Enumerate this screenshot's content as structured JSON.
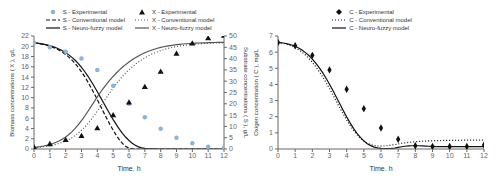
{
  "chart_data": [
    {
      "type": "line",
      "xlabel": "Time, h",
      "ylabel": "Biomass concentrations ( X ), g/L",
      "y2label": "Substrate concentrations ( S ), g/L",
      "xlim": [
        0,
        12
      ],
      "xticks": [
        0,
        1,
        2,
        3,
        4,
        5,
        6,
        7,
        8,
        9,
        10,
        11,
        12
      ],
      "ylim": [
        0,
        22
      ],
      "yticks": [
        0,
        2,
        4,
        6,
        8,
        10,
        12,
        14,
        16,
        18,
        20,
        22
      ],
      "y2lim": [
        0,
        50
      ],
      "y2ticks": [
        0,
        5,
        10,
        15,
        20,
        25,
        30,
        35,
        40,
        45,
        50
      ],
      "grid": false,
      "legend": "top",
      "x": [
        0.0,
        0.2,
        0.4,
        0.6,
        0.8,
        1.0,
        1.2,
        1.4,
        1.6,
        1.8,
        2.0,
        2.2,
        2.4,
        2.6,
        2.8,
        3.0,
        3.2,
        3.4,
        3.6,
        3.8,
        4.0,
        4.2,
        4.4,
        4.6,
        4.8,
        5.0,
        5.2,
        5.4,
        5.6,
        5.8,
        6.0,
        6.2,
        6.4,
        6.6,
        6.8,
        7.0,
        7.2,
        7.4,
        7.6,
        7.8,
        8.0,
        8.2,
        8.4,
        8.6,
        8.8,
        9.0,
        9.2,
        9.4,
        9.6,
        9.8,
        10.0,
        10.2,
        10.4,
        10.6,
        10.8,
        11.0,
        11.2,
        11.4,
        11.6,
        11.8,
        12.0
      ],
      "series": [
        {
          "name": "S - Experimental",
          "type": "scatter",
          "marker": "circle",
          "color": "#8ab4d8",
          "axis": "y2",
          "x": [
            0,
            1,
            2,
            3,
            4,
            5,
            6,
            7,
            8,
            9,
            10,
            11,
            12
          ],
          "values": [
            47,
            45,
            43,
            40,
            35,
            28,
            20,
            14,
            9,
            5,
            2.5,
            1.0,
            0.5
          ]
        },
        {
          "name": "S - Conventional model",
          "type": "line",
          "line_style": "dashed",
          "color": "#111111",
          "axis": "y2",
          "values": [
            47.0,
            46.8,
            46.55,
            46.25,
            45.9,
            45.48,
            44.98,
            44.38,
            43.66,
            42.81,
            41.82,
            40.67,
            39.34,
            37.82,
            36.1,
            34.17,
            32.03,
            29.7,
            27.2,
            24.56,
            21.82,
            19.02,
            16.2,
            13.44,
            10.79,
            8.3,
            6.04,
            4.04,
            2.38,
            1.12,
            0.38,
            0.07,
            0.01,
            0.0,
            0.0,
            0.0,
            0.0,
            0.0,
            0.0,
            0.0,
            0.0,
            0.0,
            0.0,
            0.0,
            0.0,
            0.0,
            0.0,
            0.0,
            0.0,
            0.0,
            0.0,
            0.0,
            0.0,
            0.0,
            0.0,
            0.0,
            0.0,
            0.0,
            0.0,
            0.0,
            0.0
          ]
        },
        {
          "name": "S - Neuro-fuzzy model",
          "type": "line",
          "line_style": "solid",
          "color": "#111111",
          "axis": "y2",
          "values": [
            47.0,
            46.85,
            46.65,
            46.4,
            46.1,
            45.74,
            45.3,
            44.78,
            44.17,
            43.45,
            42.62,
            41.65,
            40.53,
            39.25,
            37.79,
            36.14,
            34.3,
            32.28,
            30.1,
            27.78,
            25.35,
            22.85,
            20.32,
            17.81,
            15.35,
            12.99,
            10.76,
            8.7,
            6.83,
            5.18,
            3.76,
            2.58,
            1.65,
            0.96,
            0.51,
            0.24,
            0.1,
            0.04,
            0.02,
            0.01,
            0.005,
            0.003,
            0.002,
            0.001,
            0.0,
            0.0,
            0.0,
            0.0,
            0.0,
            0.0,
            0.0,
            0.0,
            0.0,
            0.0,
            0.0,
            0.0,
            0.0,
            0.0,
            0.0,
            0.0,
            0.0
          ]
        },
        {
          "name": "X - Experimental",
          "type": "scatter",
          "marker": "triangle",
          "color": "#111111",
          "x": [
            0,
            1,
            2,
            3,
            4,
            5,
            6,
            7,
            8,
            9,
            10,
            11,
            12
          ],
          "values": [
            0.3,
            0.9,
            1.7,
            2.5,
            4.0,
            6.5,
            9.0,
            12.0,
            15.0,
            18.5,
            20.5,
            21.5,
            22.0
          ]
        },
        {
          "name": "X - Conventional model",
          "type": "line",
          "line_style": "dotted",
          "color": "#555555",
          "values": [
            0.3,
            0.34,
            0.39,
            0.46,
            0.54,
            0.65,
            0.78,
            0.93,
            1.1,
            1.32,
            1.57,
            1.87,
            2.22,
            2.63,
            3.1,
            3.65,
            4.26,
            4.95,
            5.7,
            6.52,
            7.38,
            8.28,
            9.2,
            10.12,
            11.02,
            11.88,
            12.7,
            13.47,
            14.18,
            14.84,
            15.44,
            15.99,
            16.5,
            16.96,
            17.38,
            17.76,
            18.1,
            18.41,
            18.68,
            18.93,
            19.15,
            19.35,
            19.52,
            19.68,
            19.82,
            19.94,
            20.05,
            20.14,
            20.23,
            20.3,
            20.36,
            20.42,
            20.47,
            20.51,
            20.55,
            20.58,
            20.61,
            20.63,
            20.65,
            20.67,
            20.69
          ]
        },
        {
          "name": "X - Neuro-fuzzy model",
          "type": "line",
          "line_style": "solid",
          "color": "#555555",
          "values": [
            0.3,
            0.38,
            0.47,
            0.58,
            0.72,
            0.88,
            1.08,
            1.32,
            1.6,
            1.94,
            2.35,
            2.83,
            3.38,
            4.01,
            4.73,
            5.52,
            6.38,
            7.3,
            8.25,
            9.2,
            10.15,
            11.05,
            11.9,
            12.7,
            13.45,
            14.15,
            14.8,
            15.4,
            15.96,
            16.47,
            16.94,
            17.37,
            17.76,
            18.12,
            18.44,
            18.73,
            18.99,
            19.22,
            19.43,
            19.61,
            19.77,
            19.91,
            20.03,
            20.14,
            20.23,
            20.31,
            20.38,
            20.44,
            20.49,
            20.54,
            20.57,
            20.61,
            20.64,
            20.66,
            20.68,
            20.7,
            20.72,
            20.73,
            20.74,
            20.75,
            20.76
          ]
        }
      ]
    },
    {
      "type": "line",
      "xlabel": "Time, h",
      "ylabel": "Oxigen concentration ( C ), mg/L",
      "xlim": [
        0,
        12
      ],
      "xticks": [
        0,
        1,
        2,
        3,
        4,
        5,
        6,
        7,
        8,
        9,
        10,
        11,
        12
      ],
      "ylim": [
        0,
        7
      ],
      "yticks": [
        0,
        1,
        2,
        3,
        4,
        5,
        6,
        7
      ],
      "grid": false,
      "legend": "top",
      "x": [
        0.0,
        0.2,
        0.4,
        0.6,
        0.8,
        1.0,
        1.2,
        1.4,
        1.6,
        1.8,
        2.0,
        2.2,
        2.4,
        2.6,
        2.8,
        3.0,
        3.2,
        3.4,
        3.6,
        3.8,
        4.0,
        4.2,
        4.4,
        4.6,
        4.8,
        5.0,
        5.2,
        5.4,
        5.6,
        5.8,
        6.0,
        6.2,
        6.4,
        6.6,
        6.8,
        7.0,
        7.2,
        7.4,
        7.6,
        7.8,
        8.0,
        8.2,
        8.4,
        8.6,
        8.8,
        9.0,
        9.2,
        9.4,
        9.6,
        9.8,
        10.0,
        10.2,
        10.4,
        10.6,
        10.8,
        11.0,
        11.2,
        11.4,
        11.6,
        11.8,
        12.0
      ],
      "series": [
        {
          "name": "C - Experimental",
          "type": "scatter",
          "marker": "diamond",
          "color": "#111111",
          "x": [
            0,
            1,
            2,
            3,
            4,
            5,
            6,
            7,
            8,
            9,
            10,
            11,
            12
          ],
          "values": [
            6.6,
            6.4,
            5.8,
            4.9,
            3.7,
            2.5,
            1.3,
            0.6,
            0.2,
            0.15,
            0.15,
            0.15,
            0.25
          ]
        },
        {
          "name": "C - Conventional model",
          "type": "line",
          "line_style": "dotted",
          "color": "#111111",
          "values": [
            6.6,
            6.57,
            6.52,
            6.46,
            6.38,
            6.28,
            6.15,
            6.0,
            5.82,
            5.61,
            5.37,
            5.1,
            4.8,
            4.47,
            4.12,
            3.74,
            3.35,
            2.95,
            2.55,
            2.17,
            1.8,
            1.46,
            1.15,
            0.89,
            0.67,
            0.49,
            0.36,
            0.27,
            0.22,
            0.19,
            0.18,
            0.19,
            0.21,
            0.24,
            0.27,
            0.31,
            0.35,
            0.38,
            0.41,
            0.43,
            0.45,
            0.47,
            0.48,
            0.49,
            0.5,
            0.51,
            0.52,
            0.52,
            0.53,
            0.53,
            0.54,
            0.54,
            0.54,
            0.54,
            0.55,
            0.55,
            0.55,
            0.55,
            0.55,
            0.55,
            0.55
          ]
        },
        {
          "name": "C - Neuro-fuzzy model",
          "type": "line",
          "line_style": "solid",
          "color": "#111111",
          "values": [
            6.6,
            6.58,
            6.55,
            6.5,
            6.44,
            6.36,
            6.26,
            6.13,
            5.97,
            5.79,
            5.57,
            5.32,
            5.04,
            4.73,
            4.38,
            4.01,
            3.62,
            3.21,
            2.8,
            2.39,
            1.99,
            1.62,
            1.28,
            0.97,
            0.72,
            0.5,
            0.33,
            0.21,
            0.12,
            0.07,
            0.04,
            0.03,
            0.03,
            0.04,
            0.06,
            0.1,
            0.14,
            0.17,
            0.19,
            0.2,
            0.2,
            0.2,
            0.19,
            0.18,
            0.17,
            0.16,
            0.15,
            0.15,
            0.15,
            0.15,
            0.15,
            0.15,
            0.15,
            0.15,
            0.15,
            0.15,
            0.15,
            0.15,
            0.15,
            0.15,
            0.15
          ]
        }
      ]
    }
  ]
}
